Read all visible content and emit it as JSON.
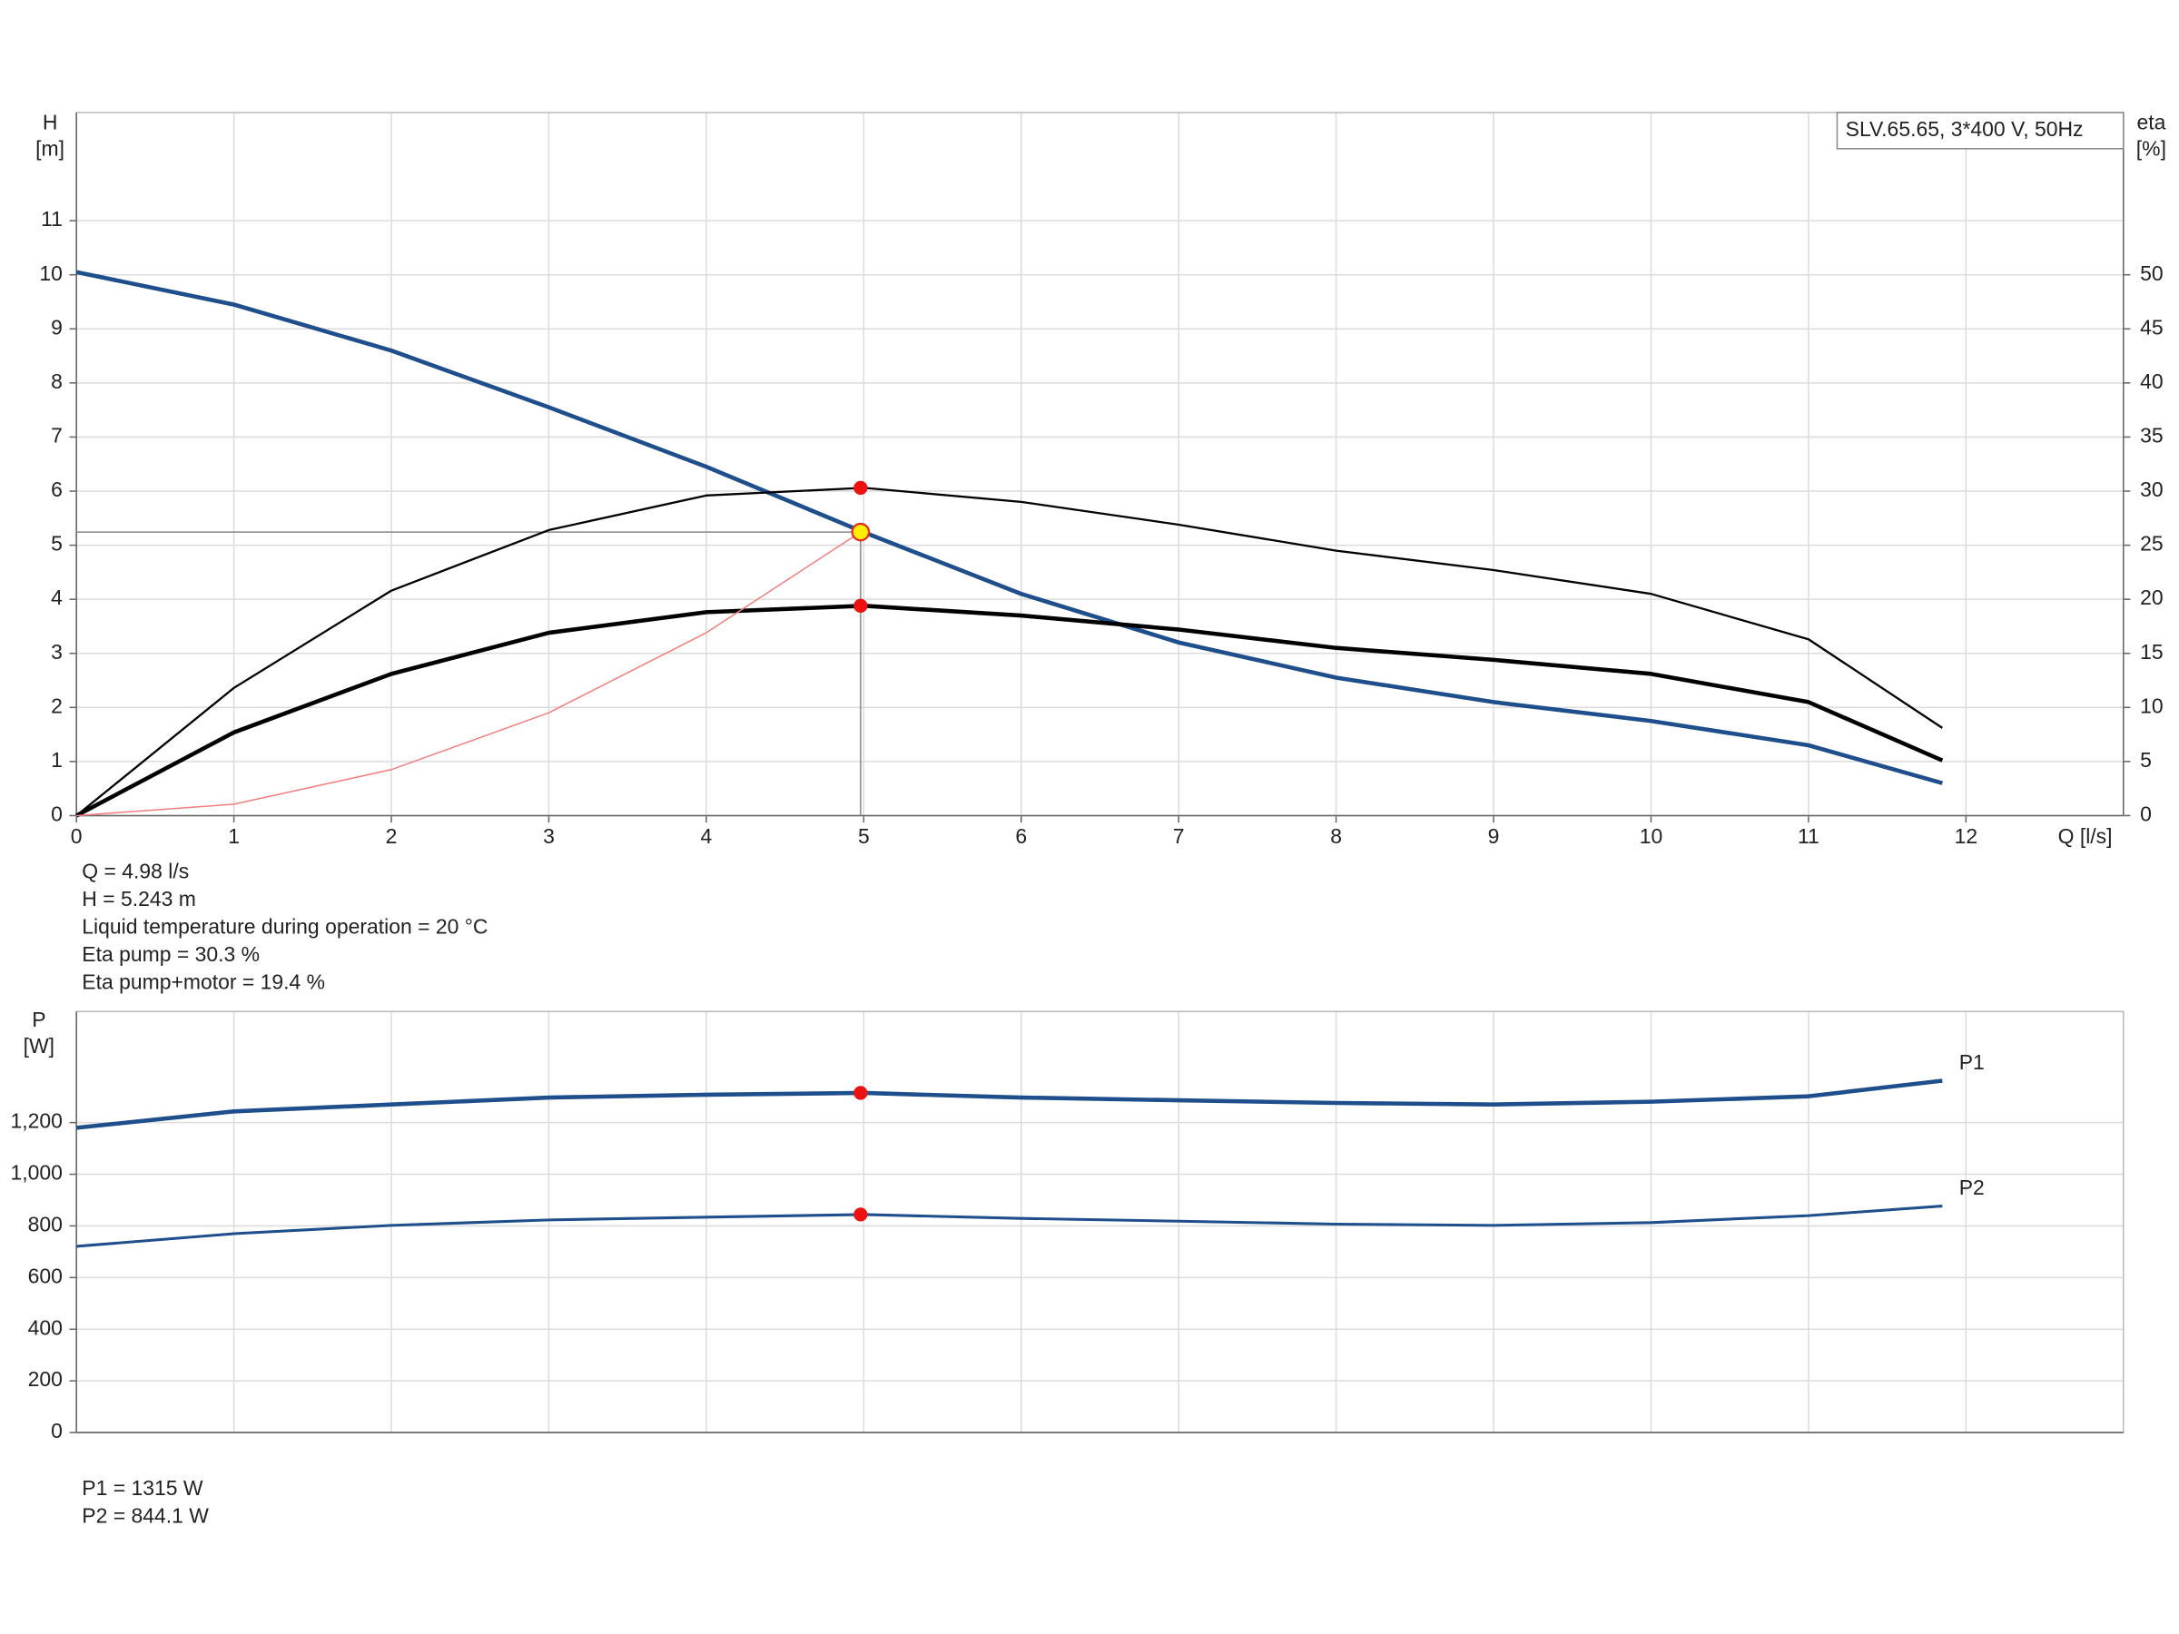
{
  "chart_data": [
    {
      "type": "line",
      "legend_title": "SLV.65.65, 3*400 V, 50Hz",
      "y_label": [
        "H",
        "[m]"
      ],
      "y2_label": [
        "eta",
        "[%]"
      ],
      "x_label": "Q [l/s]",
      "xlim": [
        0,
        13
      ],
      "xticks": [
        0,
        1,
        2,
        3,
        4,
        5,
        6,
        7,
        8,
        9,
        10,
        11,
        12
      ],
      "ylim": [
        0,
        13
      ],
      "yticks": [
        0,
        1,
        2,
        3,
        4,
        5,
        6,
        7,
        8,
        9,
        10,
        11
      ],
      "y2lim": [
        0,
        65
      ],
      "y2ticks": [
        0,
        5,
        10,
        15,
        20,
        25,
        30,
        35,
        40,
        45,
        50
      ],
      "grid": true,
      "series": [
        {
          "color": "#1f4e8c",
          "width": 3,
          "axis": "y",
          "x": [
            0,
            1,
            2,
            3,
            4,
            5,
            6,
            7,
            8,
            9,
            10,
            11,
            11.85
          ],
          "values": [
            10.05,
            9.45,
            8.6,
            7.55,
            6.45,
            5.24,
            4.1,
            3.2,
            2.55,
            2.1,
            1.75,
            1.3,
            0.6
          ]
        },
        {
          "color": "#000000",
          "width": 1.5,
          "axis": "y2",
          "x": [
            0,
            1,
            2,
            3,
            4,
            5,
            6,
            7,
            8,
            9,
            10,
            11,
            11.85
          ],
          "values": [
            0,
            11.8,
            20.8,
            26.4,
            29.6,
            30.3,
            29,
            26.9,
            24.5,
            22.7,
            20.5,
            16.3,
            8.1
          ]
        },
        {
          "color": "#000000",
          "width": 3,
          "axis": "y2",
          "x": [
            0,
            1,
            2,
            3,
            4,
            5,
            6,
            7,
            8,
            9,
            10,
            11,
            11.85
          ],
          "values": [
            0,
            7.7,
            13.1,
            16.9,
            18.8,
            19.4,
            18.5,
            17.2,
            15.5,
            14.4,
            13.1,
            10.5,
            5.1
          ]
        },
        {
          "color": "#f08080",
          "width": 1,
          "axis": "y",
          "x": [
            0,
            1,
            2,
            3,
            4,
            4.98
          ],
          "values": [
            0,
            0.21,
            0.85,
            1.9,
            3.38,
            5.243
          ]
        }
      ],
      "points": [
        {
          "x": 4.98,
          "y": 30.3,
          "axis": "y2",
          "color": "#ee1111"
        },
        {
          "x": 4.98,
          "y": 19.4,
          "axis": "y2",
          "color": "#ee1111"
        },
        {
          "x": 4.98,
          "y": 5.243,
          "axis": "y",
          "color": "#ffee00"
        }
      ],
      "info": [
        "Q = 4.98 l/s",
        "H = 5.243 m",
        "Liquid temperature during operation = 20 °C",
        "Eta pump = 30.3 %",
        "Eta pump+motor = 19.4 %"
      ]
    },
    {
      "type": "line",
      "y_label": [
        "P",
        "[W]"
      ],
      "xlim": [
        0,
        13
      ],
      "ylim": [
        0,
        1630
      ],
      "yticks": [
        0,
        200,
        400,
        600,
        800,
        {
          "value": 1000,
          "label": "1,000"
        },
        {
          "value": 1200,
          "label": "1,200"
        }
      ],
      "grid": true,
      "series": [
        {
          "name": "P1",
          "color": "#1f4e8c",
          "width": 3,
          "x": [
            0,
            1,
            2,
            3,
            4,
            5,
            6,
            7,
            8,
            9,
            10,
            11,
            11.85
          ],
          "values": [
            1180,
            1243,
            1270,
            1297,
            1308,
            1315,
            1297,
            1286,
            1276,
            1270,
            1281,
            1302,
            1362
          ]
        },
        {
          "name": "P2",
          "color": "#1f4e8c",
          "width": 2,
          "x": [
            0,
            1,
            2,
            3,
            4,
            5,
            6,
            7,
            8,
            9,
            10,
            11,
            11.85
          ],
          "values": [
            721,
            770,
            802,
            823,
            834,
            844,
            829,
            818,
            807,
            802,
            813,
            840,
            877
          ]
        }
      ],
      "points": [
        {
          "x": 4.98,
          "y": 1315,
          "color": "#ee1111"
        },
        {
          "x": 4.98,
          "y": 844.1,
          "color": "#ee1111"
        }
      ],
      "info": [
        "P1 = 1315 W",
        "P2 = 844.1 W"
      ]
    }
  ]
}
